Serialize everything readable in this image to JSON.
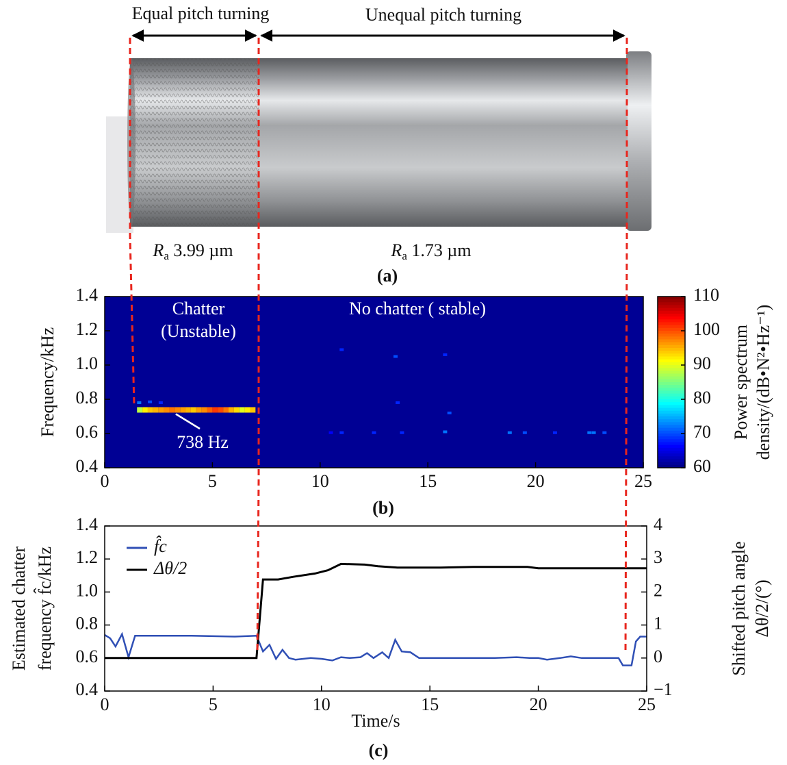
{
  "photo": {
    "left_label": "Equal pitch turning",
    "right_label": "Unequal pitch turning",
    "left_roughness": {
      "symbol": "R",
      "subscript": "a",
      "text": " 3.99 µm"
    },
    "right_roughness": {
      "symbol": "R",
      "subscript": "a",
      "text": " 1.73 µm"
    },
    "caption": "(a)"
  },
  "chart_data": [
    {
      "type": "spectrogram",
      "caption": "(b)",
      "ylabel": "Frequency/kHz",
      "xlim": [
        0,
        25
      ],
      "xticks": [
        0,
        5,
        10,
        15,
        20,
        25
      ],
      "ylim": [
        0.4,
        1.4
      ],
      "yticks": [
        0.4,
        0.6,
        0.8,
        {
          "value": 1.0,
          "label": "1.0"
        },
        1.2,
        1.4
      ],
      "clim": [
        60,
        110
      ],
      "cticks": [
        60,
        70,
        80,
        90,
        100,
        110
      ],
      "colormap": "jet",
      "colorbar_label": [
        "Power spectrum",
        "density/(dB•N²•Hz⁻¹)"
      ],
      "background_value": 61,
      "band": {
        "y": 0.738,
        "x": [
          1.5,
          1.75,
          2.0,
          2.25,
          2.5,
          2.75,
          3.0,
          3.25,
          3.5,
          3.75,
          4.0,
          4.25,
          4.5,
          4.75,
          5.0,
          5.25,
          5.5,
          5.75,
          6.0,
          6.25,
          6.5,
          6.75
        ],
        "values": [
          88,
          92,
          94,
          95,
          96,
          97,
          98,
          97,
          96,
          95,
          94,
          96,
          97,
          99,
          101,
          100,
          98,
          95,
          93,
          90,
          92,
          94
        ]
      },
      "spots": {
        "x": [
          1.6,
          2.1,
          2.6,
          11.0,
          13.5,
          15.8,
          13.6,
          16.0,
          10.5,
          11.0,
          12.5,
          13.8,
          15.8,
          18.8,
          19.5,
          20.9,
          22.5,
          22.7,
          23.2
        ],
        "y": [
          0.78,
          0.785,
          0.78,
          1.09,
          1.05,
          1.06,
          0.78,
          0.72,
          0.605,
          0.605,
          0.605,
          0.605,
          0.61,
          0.605,
          0.605,
          0.605,
          0.605,
          0.605,
          0.605
        ],
        "values": [
          72,
          70,
          68,
          68,
          70,
          68,
          68,
          70,
          66,
          68,
          68,
          68,
          72,
          72,
          70,
          68,
          72,
          72,
          70
        ]
      },
      "annotations": [
        "Chatter",
        "(Unstable)",
        "No chatter ( stable)",
        "738 Hz"
      ]
    },
    {
      "type": "line",
      "caption": "(c)",
      "xlabel": "Time/s",
      "ylabel": [
        "Estimated chatter",
        "frequency f̂c/kHz"
      ],
      "y2label": [
        "Shifted pitch angle",
        "Δθ/2/(°)"
      ],
      "xlim": [
        0,
        25
      ],
      "xticks": [
        0,
        5,
        10,
        15,
        20,
        25
      ],
      "ylim": [
        0.4,
        1.4
      ],
      "yticks": [
        0.4,
        0.6,
        0.8,
        {
          "value": 1.0,
          "label": "1.0"
        },
        1.2,
        1.4
      ],
      "y2lim": [
        -1,
        4
      ],
      "y2ticks": [
        {
          "value": -1,
          "label": "−1"
        },
        0,
        1,
        2,
        3,
        4
      ],
      "legend": "upper left",
      "series": [
        {
          "name": "f̂c",
          "color": "#2f4fb5",
          "x": [
            0,
            0.25,
            0.5,
            0.8,
            1.1,
            1.4,
            2,
            4,
            6,
            7.0,
            7.3,
            7.6,
            7.9,
            8.2,
            8.5,
            8.8,
            9.5,
            10.0,
            10.5,
            10.9,
            11.3,
            11.8,
            12.1,
            12.4,
            12.8,
            13.1,
            13.4,
            13.7,
            14.1,
            14.5,
            15,
            16,
            17,
            18,
            19,
            19.6,
            20,
            20.4,
            21,
            21.5,
            22,
            23,
            23.7,
            23.9,
            24.3,
            24.5,
            24.7,
            25
          ],
          "values": [
            0.74,
            0.72,
            0.67,
            0.745,
            0.605,
            0.735,
            0.735,
            0.735,
            0.73,
            0.735,
            0.64,
            0.68,
            0.595,
            0.65,
            0.6,
            0.59,
            0.6,
            0.595,
            0.585,
            0.605,
            0.6,
            0.605,
            0.63,
            0.6,
            0.635,
            0.6,
            0.71,
            0.64,
            0.635,
            0.6,
            0.6,
            0.6,
            0.6,
            0.6,
            0.605,
            0.6,
            0.6,
            0.59,
            0.6,
            0.61,
            0.6,
            0.6,
            0.6,
            0.555,
            0.555,
            0.7,
            0.73,
            0.73
          ]
        },
        {
          "name": "Δθ/2",
          "color": "#000000",
          "axis": "y2",
          "x": [
            0,
            7.0,
            7.3,
            8.0,
            8.7,
            9.7,
            10.3,
            10.9,
            12.0,
            12.6,
            13.5,
            15.5,
            17,
            19.5,
            20,
            25
          ],
          "values": [
            0,
            0,
            2.38,
            2.38,
            2.46,
            2.56,
            2.66,
            2.85,
            2.83,
            2.78,
            2.74,
            2.74,
            2.76,
            2.76,
            2.72,
            2.72
          ]
        }
      ]
    }
  ]
}
